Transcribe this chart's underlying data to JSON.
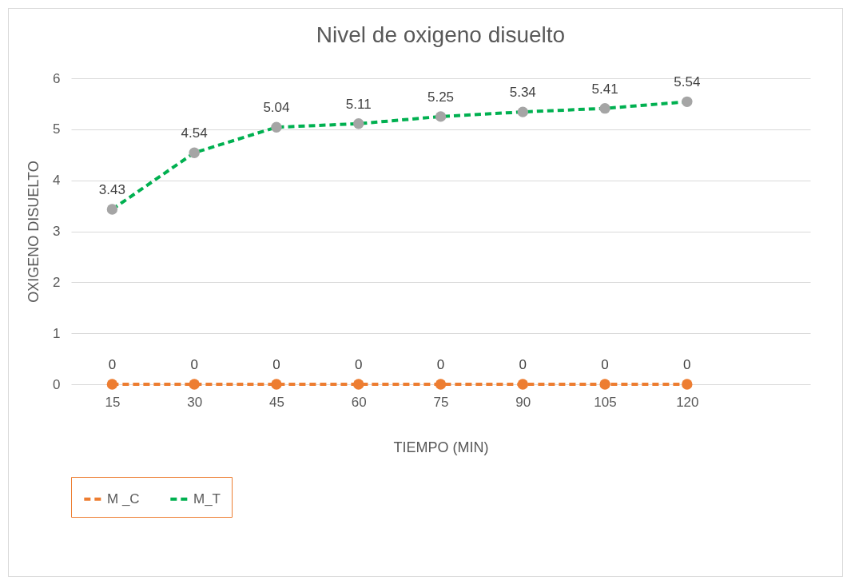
{
  "chart_data": {
    "type": "line",
    "title": "Nivel de oxigeno disuelto",
    "xlabel": "TIEMPO (MIN)",
    "ylabel": "OXIGENO DISUELTO",
    "categories": [
      "15",
      "30",
      "45",
      "60",
      "75",
      "90",
      "105",
      "120",
      null
    ],
    "series": [
      {
        "name": "M _C",
        "color": "#ed7d31",
        "colors": [
          "#ed7d31",
          "#ed7d31",
          "#ed7d31",
          "#ed7d31",
          "#ed7d31",
          "#ed7d31",
          "#ed7d31",
          "#ed7d31",
          null
        ],
        "values": [
          0,
          0,
          0,
          0,
          0,
          0,
          0,
          0,
          null
        ]
      },
      {
        "name": "M_T",
        "color": "#00b050",
        "colors": [
          "#a5a5a5",
          "#a5a5a5",
          "#a5a5a5",
          "#a5a5a5",
          "#a5a5a5",
          "#a5a5a5",
          "#a5a5a5",
          "#a5a5a5",
          null
        ],
        "values": [
          3.43,
          4.54,
          5.04,
          5.11,
          5.25,
          5.34,
          5.41,
          5.54,
          null
        ]
      }
    ],
    "ylim": [
      0,
      6
    ],
    "yticks": [
      0,
      1,
      2,
      3,
      4,
      5,
      6
    ],
    "grid": "y",
    "legend": "bottom left",
    "marker": "circle",
    "line_style": "dashed",
    "data_labels": true
  }
}
